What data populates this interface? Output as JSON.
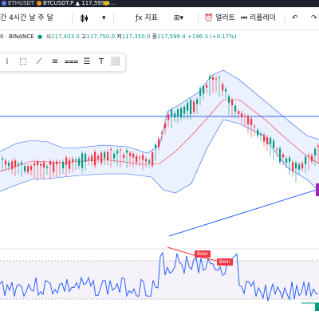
{
  "tabs": [
    {
      "label": "ETHUSDT"
    },
    {
      "label": "BTCUSDT.P",
      "price": "117,599.4"
    }
  ],
  "toolbar": {
    "interval_label": "간 4시간 날 주 달",
    "indicators_label": "지표",
    "alerts_label": "얼러트",
    "replay_label": "리플레이"
  },
  "legend": {
    "symbol": "0 · BINANCE",
    "open_label": "시",
    "open": "117,403.0",
    "high_label": "고",
    "high": "117,750.0",
    "low_label": "저",
    "low": "117,350.0",
    "close_label": "종",
    "close": "117,599.4",
    "change": "+196.3 (+0.17%)"
  },
  "drawing_tools": [
    "cursor-icon",
    "rectangle-icon",
    "line-icon",
    "fib-icon",
    "parallel-icon",
    "text-icon",
    "shapes-icon"
  ],
  "colors": {
    "up": "#089981",
    "down": "#f23645",
    "band": "#2962ff",
    "hline": "#2962ff"
  },
  "rsi_labels": {
    "bear1": "Bear",
    "bear2": "Bear"
  }
}
